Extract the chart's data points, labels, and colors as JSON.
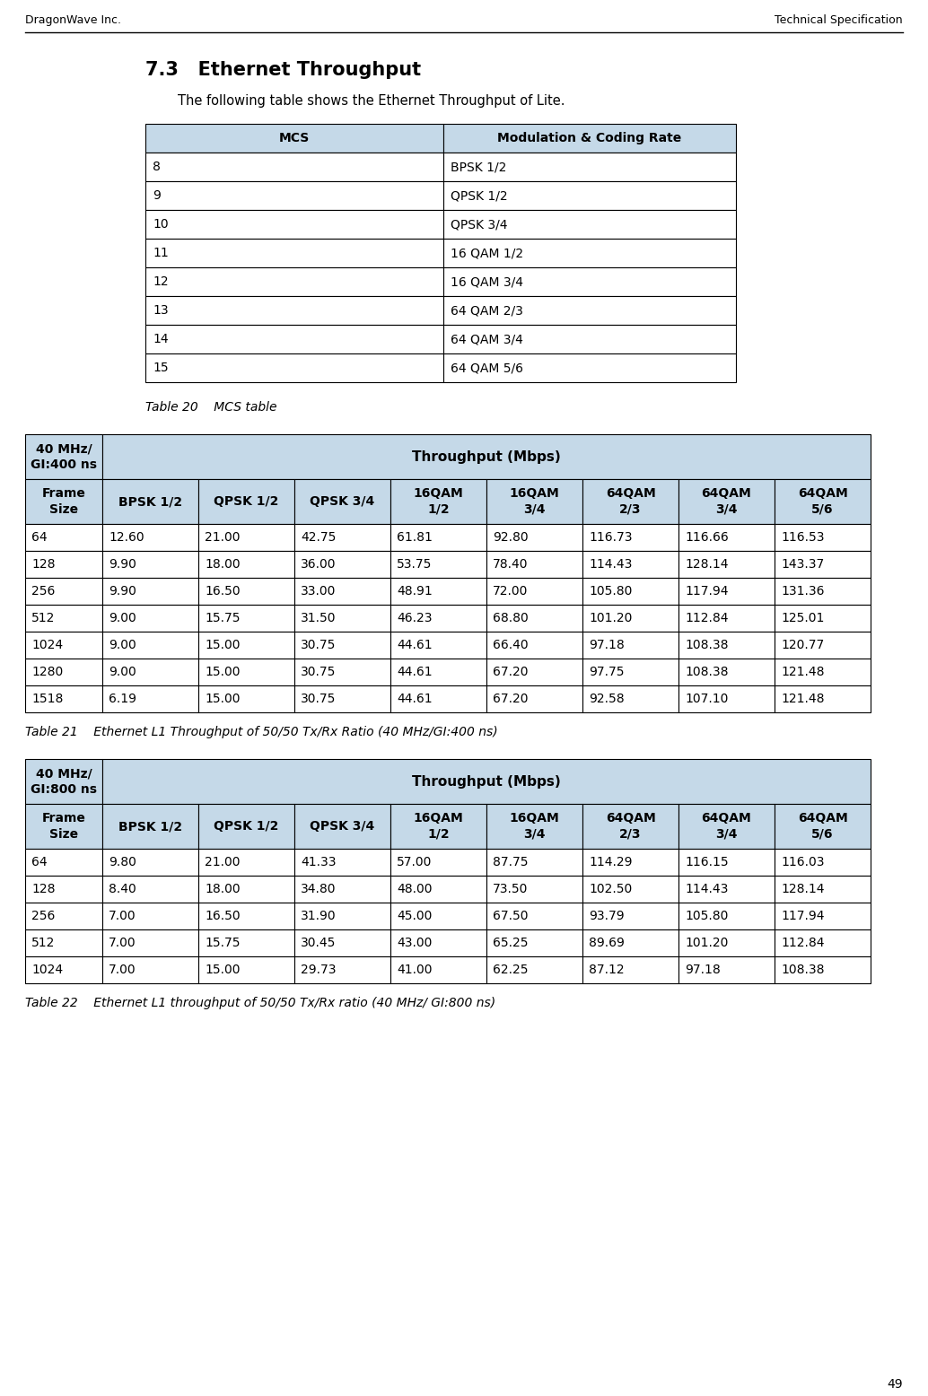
{
  "header_left": "DragonWave Inc.",
  "header_right": "Technical Specification",
  "page_number": "49",
  "section_title": "7.3   Ethernet Throughput",
  "intro_text": "The following table shows the Ethernet Throughput of Lite.",
  "table1_headers": [
    "MCS",
    "Modulation & Coding Rate"
  ],
  "table1_rows": [
    [
      "8",
      "BPSK 1/2"
    ],
    [
      "9",
      "QPSK 1/2"
    ],
    [
      "10",
      "QPSK 3/4"
    ],
    [
      "11",
      "16 QAM 1/2"
    ],
    [
      "12",
      "16 QAM 3/4"
    ],
    [
      "13",
      "64 QAM 2/3"
    ],
    [
      "14",
      "64 QAM 3/4"
    ],
    [
      "15",
      "64 QAM 5/6"
    ]
  ],
  "table1_caption": "Table 20    MCS table",
  "table2_header_row": [
    "Frame\nSize",
    "BPSK 1/2",
    "QPSK 1/2",
    "QPSK 3/4",
    "16QAM\n1/2",
    "16QAM\n3/4",
    "64QAM\n2/3",
    "64QAM\n3/4",
    "64QAM\n5/6"
  ],
  "table2_rows": [
    [
      "64",
      "12.60",
      "21.00",
      "42.75",
      "61.81",
      "92.80",
      "116.73",
      "116.66",
      "116.53"
    ],
    [
      "128",
      "9.90",
      "18.00",
      "36.00",
      "53.75",
      "78.40",
      "114.43",
      "128.14",
      "143.37"
    ],
    [
      "256",
      "9.90",
      "16.50",
      "33.00",
      "48.91",
      "72.00",
      "105.80",
      "117.94",
      "131.36"
    ],
    [
      "512",
      "9.00",
      "15.75",
      "31.50",
      "46.23",
      "68.80",
      "101.20",
      "112.84",
      "125.01"
    ],
    [
      "1024",
      "9.00",
      "15.00",
      "30.75",
      "44.61",
      "66.40",
      "97.18",
      "108.38",
      "120.77"
    ],
    [
      "1280",
      "9.00",
      "15.00",
      "30.75",
      "44.61",
      "67.20",
      "97.75",
      "108.38",
      "121.48"
    ],
    [
      "1518",
      "6.19",
      "15.00",
      "30.75",
      "44.61",
      "67.20",
      "92.58",
      "107.10",
      "121.48"
    ]
  ],
  "table2_caption": "Table 21    Ethernet L1 Throughput of 50/50 Tx/Rx Ratio (40 MHz/GI:400 ns)",
  "table3_header_row": [
    "Frame\nSize",
    "BPSK 1/2",
    "QPSK 1/2",
    "QPSK 3/4",
    "16QAM\n1/2",
    "16QAM\n3/4",
    "64QAM\n2/3",
    "64QAM\n3/4",
    "64QAM\n5/6"
  ],
  "table3_rows": [
    [
      "64",
      "9.80",
      "21.00",
      "41.33",
      "57.00",
      "87.75",
      "114.29",
      "116.15",
      "116.03"
    ],
    [
      "128",
      "8.40",
      "18.00",
      "34.80",
      "48.00",
      "73.50",
      "102.50",
      "114.43",
      "128.14"
    ],
    [
      "256",
      "7.00",
      "16.50",
      "31.90",
      "45.00",
      "67.50",
      "93.79",
      "105.80",
      "117.94"
    ],
    [
      "512",
      "7.00",
      "15.75",
      "30.45",
      "43.00",
      "65.25",
      "89.69",
      "101.20",
      "112.84"
    ],
    [
      "1024",
      "7.00",
      "15.00",
      "29.73",
      "41.00",
      "62.25",
      "87.12",
      "97.18",
      "108.38"
    ]
  ],
  "table3_caption": "Table 22    Ethernet L1 throughput of 50/50 Tx/Rx ratio (40 MHz/ GI:800 ns)",
  "header_bg": "#c5d9e8",
  "border_color": "#000000"
}
